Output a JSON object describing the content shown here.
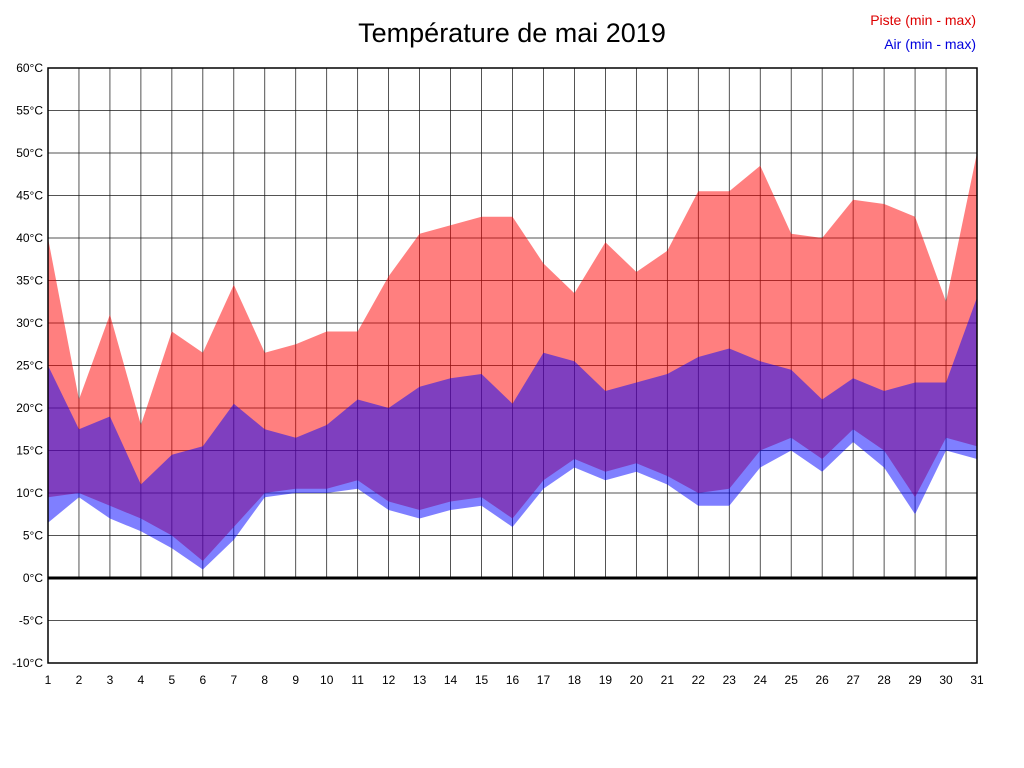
{
  "title": "Température de mai 2019",
  "legend": {
    "piste_label": "Piste (min - max)",
    "air_label": "Air (min - max)",
    "piste_color": "#dd0000",
    "air_color": "#0000dd"
  },
  "chart_data": {
    "type": "area",
    "title": "Température de mai 2019",
    "x": [
      1,
      2,
      3,
      4,
      5,
      6,
      7,
      8,
      9,
      10,
      11,
      12,
      13,
      14,
      15,
      16,
      17,
      18,
      19,
      20,
      21,
      22,
      23,
      24,
      25,
      26,
      27,
      28,
      29,
      30,
      31
    ],
    "x_tick_labels": [
      "1",
      "2",
      "3",
      "4",
      "5",
      "6",
      "7",
      "8",
      "9",
      "10",
      "11",
      "12",
      "13",
      "14",
      "15",
      "16",
      "17",
      "18",
      "19",
      "20",
      "21",
      "22",
      "23",
      "24",
      "25",
      "26",
      "27",
      "28",
      "29",
      "30",
      "31"
    ],
    "ylim": [
      -10,
      60
    ],
    "y_tick_step": 5,
    "y_tick_labels": [
      "-10°C",
      "-5°C",
      "0°C",
      "5°C",
      "10°C",
      "15°C",
      "20°C",
      "25°C",
      "30°C",
      "35°C",
      "40°C",
      "45°C",
      "50°C",
      "55°C",
      "60°C"
    ],
    "grid": true,
    "zero_line": true,
    "legend_position": "top-right",
    "series": [
      {
        "name": "Piste (min - max)",
        "fill": "rgba(255,0,0,0.5)",
        "min": [
          9.5,
          10,
          8.5,
          7,
          5,
          2,
          6,
          10,
          10.5,
          10.5,
          11.5,
          9,
          8,
          9,
          9.5,
          7,
          11.5,
          14,
          12.5,
          13.5,
          12,
          10,
          10.5,
          15,
          16.5,
          14,
          17.5,
          15,
          9.5,
          16.5,
          15.5
        ],
        "max": [
          40,
          21,
          31,
          18,
          29,
          26.5,
          34.5,
          26.5,
          27.5,
          29,
          29,
          35.5,
          40.5,
          41.5,
          42.5,
          42.5,
          37,
          33.5,
          39.5,
          36,
          38.5,
          45.5,
          45.5,
          48.5,
          40.5,
          40,
          44.5,
          44,
          42.5,
          32.5,
          50
        ]
      },
      {
        "name": "Air (min - max)",
        "fill": "rgba(0,0,255,0.5)",
        "min": [
          6.5,
          9.5,
          7,
          5.5,
          3.5,
          1,
          4.5,
          9.5,
          10,
          10,
          10.5,
          8,
          7,
          8,
          8.5,
          6,
          10.5,
          13,
          11.5,
          12.5,
          11,
          8.5,
          8.5,
          13,
          15,
          12.5,
          16,
          13,
          7.5,
          15,
          14
        ],
        "max": [
          25,
          17.5,
          19,
          11,
          14.5,
          15.5,
          20.5,
          17.5,
          16.5,
          18,
          21,
          20,
          22.5,
          23.5,
          24,
          20.5,
          26.5,
          25.5,
          22,
          23,
          24,
          26,
          27,
          25.5,
          24.5,
          21,
          23.5,
          22,
          23,
          23,
          33
        ]
      }
    ]
  }
}
